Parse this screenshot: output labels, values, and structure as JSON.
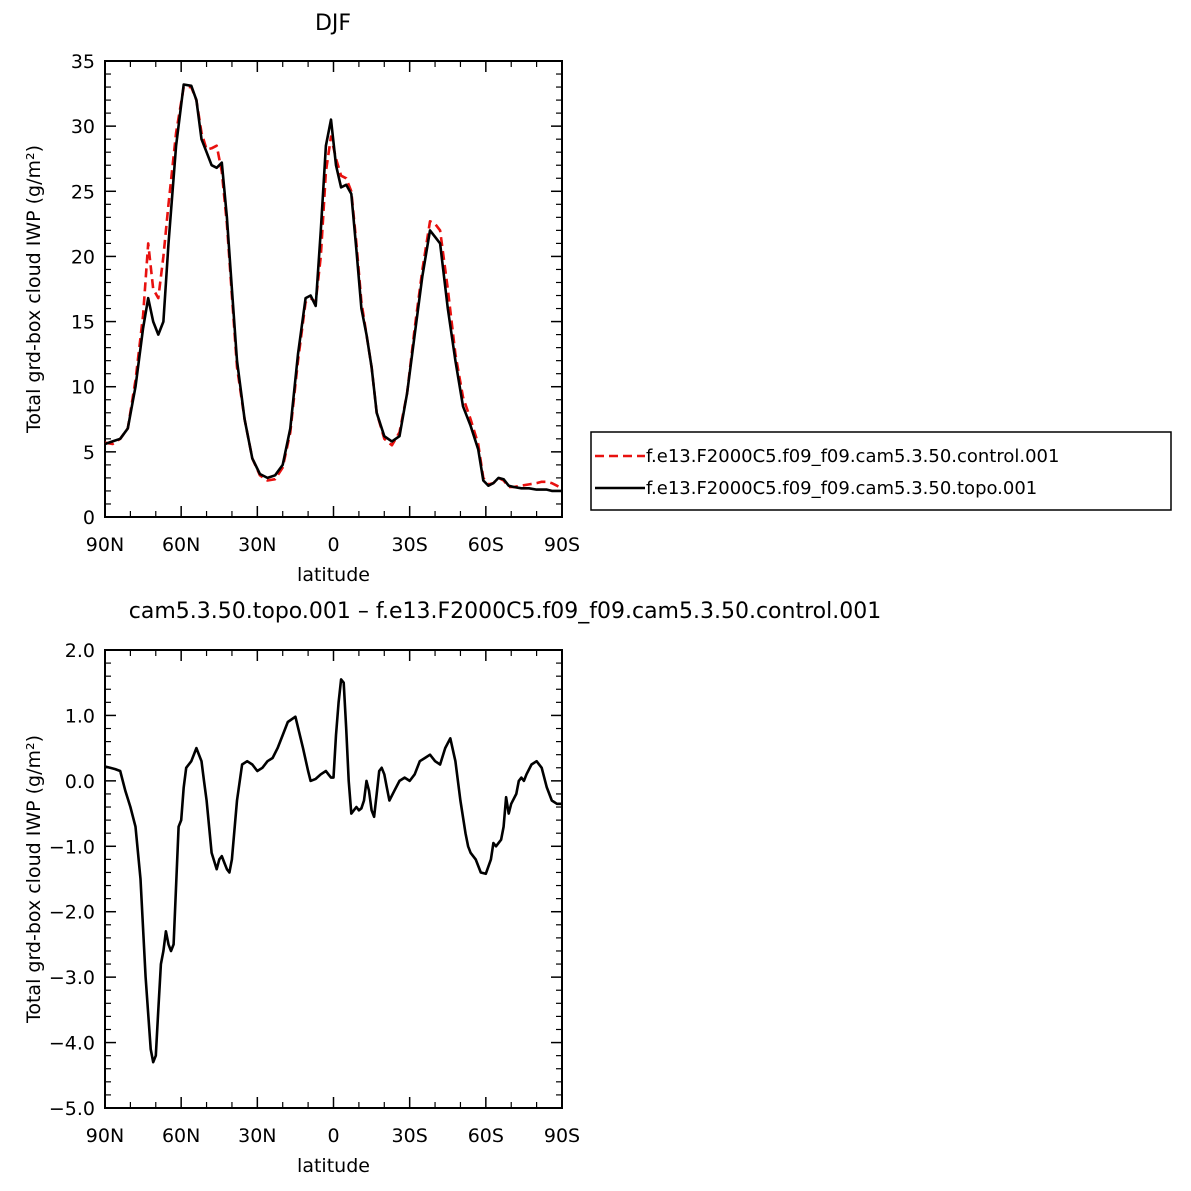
{
  "colors": {
    "control": "#e8110f",
    "topo": "#000000",
    "axis": "#000000",
    "background": "#ffffff"
  },
  "chart_data": [
    {
      "type": "line",
      "title": "DJF",
      "xlabel": "latitude",
      "ylabel": "Total grd-box cloud IWP (g/m²)",
      "xlim": [
        90,
        -90
      ],
      "ylim": [
        0,
        35
      ],
      "xticks": [
        {
          "value": 90,
          "label": "90N"
        },
        {
          "value": 60,
          "label": "60N"
        },
        {
          "value": 30,
          "label": "30N"
        },
        {
          "value": 0,
          "label": "0"
        },
        {
          "value": -30,
          "label": "30S"
        },
        {
          "value": -60,
          "label": "60S"
        },
        {
          "value": -90,
          "label": "90S"
        }
      ],
      "yticks": [
        {
          "value": 0,
          "label": "0"
        },
        {
          "value": 5,
          "label": "5"
        },
        {
          "value": 10,
          "label": "10"
        },
        {
          "value": 15,
          "label": "15"
        },
        {
          "value": 20,
          "label": "20"
        },
        {
          "value": 25,
          "label": "25"
        },
        {
          "value": 30,
          "label": "30"
        },
        {
          "value": 35,
          "label": "35"
        }
      ],
      "legend_position": "right",
      "series": [
        {
          "name": "f.e13.F2000C5.f09_f09.cam5.3.50.control.001",
          "style": "dashed",
          "color": "#e8110f",
          "x": [
            90,
            87,
            84,
            81,
            78,
            75,
            73,
            71,
            69,
            67,
            65,
            62,
            59,
            56,
            54,
            52,
            50,
            48,
            46,
            44,
            42,
            40,
            38,
            35,
            32,
            29,
            26,
            23,
            20,
            17,
            14,
            11,
            9,
            7,
            5,
            3,
            1,
            -1,
            -3,
            -5,
            -7,
            -9,
            -11,
            -13,
            -15,
            -17,
            -20,
            -23,
            -26,
            -29,
            -32,
            -35,
            -38,
            -40,
            -42,
            -45,
            -48,
            -51,
            -54,
            -57,
            -59,
            -61,
            -63,
            -65,
            -67,
            -69,
            -71,
            -74,
            -77,
            -80,
            -82,
            -84,
            -86,
            -88,
            -90
          ],
          "y": [
            5.7,
            5.6,
            6.0,
            6.8,
            10.5,
            15.5,
            21.0,
            17.5,
            16.8,
            20.0,
            24.0,
            29.5,
            33.0,
            33.0,
            32.0,
            29.5,
            28.2,
            28.3,
            28.5,
            26.5,
            22.5,
            17.0,
            11.5,
            7.5,
            4.5,
            3.2,
            2.8,
            2.9,
            3.8,
            6.5,
            12.0,
            16.5,
            16.8,
            16.5,
            20.0,
            26.5,
            29.2,
            27.5,
            26.2,
            26.0,
            25.0,
            21.0,
            16.5,
            14.0,
            11.5,
            8.0,
            6.0,
            5.5,
            6.5,
            9.5,
            14.5,
            19.0,
            22.7,
            22.5,
            22.0,
            17.5,
            12.5,
            9.2,
            7.5,
            5.6,
            3.0,
            2.5,
            2.6,
            3.0,
            2.8,
            2.3,
            2.3,
            2.4,
            2.5,
            2.6,
            2.7,
            2.7,
            2.6,
            2.4,
            2.2
          ]
        },
        {
          "name": "f.e13.F2000C5.f09_f09.cam5.3.50.topo.001",
          "style": "solid",
          "color": "#000000",
          "x": [
            90,
            87,
            84,
            81,
            78,
            75,
            73,
            71,
            69,
            67,
            65,
            62,
            59,
            56,
            54,
            52,
            50,
            48,
            46,
            44,
            42,
            40,
            38,
            35,
            32,
            29,
            26,
            23,
            20,
            17,
            14,
            11,
            9,
            7,
            5,
            3,
            1,
            -1,
            -3,
            -5,
            -7,
            -9,
            -11,
            -13,
            -15,
            -17,
            -20,
            -23,
            -26,
            -29,
            -32,
            -35,
            -38,
            -40,
            -42,
            -45,
            -48,
            -51,
            -54,
            -57,
            -59,
            -61,
            -63,
            -65,
            -67,
            -69,
            -71,
            -74,
            -77,
            -80,
            -82,
            -84,
            -86,
            -88,
            -90
          ],
          "y": [
            5.6,
            5.8,
            6.0,
            6.8,
            10.0,
            14.5,
            16.8,
            15.0,
            14.0,
            15.0,
            21.0,
            28.5,
            33.2,
            33.1,
            32.0,
            29.0,
            28.0,
            27.0,
            26.8,
            27.2,
            23.0,
            17.5,
            12.0,
            7.5,
            4.5,
            3.3,
            3.0,
            3.2,
            4.0,
            6.8,
            12.5,
            16.8,
            17.0,
            16.2,
            22.0,
            28.5,
            30.5,
            27.0,
            25.3,
            25.5,
            24.8,
            20.5,
            16.0,
            14.0,
            11.5,
            8.0,
            6.2,
            5.8,
            6.2,
            9.5,
            14.0,
            18.5,
            22.0,
            21.5,
            21.0,
            16.0,
            12.0,
            8.5,
            7.0,
            5.2,
            2.8,
            2.4,
            2.6,
            3.0,
            2.9,
            2.4,
            2.3,
            2.2,
            2.2,
            2.1,
            2.1,
            2.1,
            2.0,
            2.0,
            2.0
          ]
        }
      ]
    },
    {
      "type": "line",
      "title": "cam5.3.50.topo.001 – f.e13.F2000C5.f09_f09.cam5.3.50.control.001",
      "xlabel": "latitude",
      "ylabel": "Total grd-box cloud IWP (g/m²)",
      "xlim": [
        90,
        -90
      ],
      "ylim": [
        -5.0,
        2.0
      ],
      "xticks": [
        {
          "value": 90,
          "label": "90N"
        },
        {
          "value": 60,
          "label": "60N"
        },
        {
          "value": 30,
          "label": "30N"
        },
        {
          "value": 0,
          "label": "0"
        },
        {
          "value": -30,
          "label": "30S"
        },
        {
          "value": -60,
          "label": "60S"
        },
        {
          "value": -90,
          "label": "90S"
        }
      ],
      "yticks": [
        {
          "value": -5.0,
          "label": "−5.0"
        },
        {
          "value": -4.0,
          "label": "−4.0"
        },
        {
          "value": -3.0,
          "label": "−3.0"
        },
        {
          "value": -2.0,
          "label": "−2.0"
        },
        {
          "value": -1.0,
          "label": "−1.0"
        },
        {
          "value": 0.0,
          "label": "0.0"
        },
        {
          "value": 1.0,
          "label": "1.0"
        },
        {
          "value": 2.0,
          "label": "2.0"
        }
      ],
      "series": [
        {
          "style": "solid",
          "color": "#000000",
          "x": [
            90,
            88,
            86,
            84,
            82,
            80,
            78,
            76,
            74,
            72,
            71,
            70,
            69,
            68,
            67,
            66,
            65,
            64,
            63,
            62,
            61,
            60,
            59,
            58,
            56,
            54,
            52,
            51,
            50,
            48,
            46,
            45,
            44,
            43,
            42,
            41,
            40,
            38,
            36,
            34,
            32,
            30,
            28,
            26,
            24,
            22,
            20,
            18,
            15,
            12,
            10,
            9,
            7,
            5,
            3,
            2,
            1,
            0,
            -1,
            -2,
            -3,
            -4,
            -5,
            -6,
            -7,
            -8,
            -9,
            -10,
            -11,
            -12,
            -13,
            -14,
            -15,
            -16,
            -17,
            -18,
            -19,
            -20,
            -21,
            -22,
            -24,
            -26,
            -28,
            -30,
            -32,
            -34,
            -36,
            -38,
            -40,
            -42,
            -44,
            -46,
            -48,
            -50,
            -52,
            -53,
            -54,
            -56,
            -58,
            -60,
            -62,
            -63,
            -64,
            -66,
            -67,
            -68,
            -69,
            -70,
            -72,
            -73,
            -74,
            -75,
            -76,
            -78,
            -80,
            -82,
            -84,
            -86,
            -88,
            -90
          ],
          "y": [
            0.22,
            0.2,
            0.18,
            0.15,
            -0.15,
            -0.4,
            -0.7,
            -1.5,
            -3.0,
            -4.1,
            -4.3,
            -4.2,
            -3.5,
            -2.8,
            -2.6,
            -2.3,
            -2.5,
            -2.6,
            -2.5,
            -1.6,
            -0.7,
            -0.6,
            -0.1,
            0.2,
            0.3,
            0.5,
            0.3,
            0.0,
            -0.3,
            -1.1,
            -1.35,
            -1.2,
            -1.15,
            -1.25,
            -1.35,
            -1.4,
            -1.2,
            -0.3,
            0.25,
            0.3,
            0.25,
            0.15,
            0.2,
            0.3,
            0.35,
            0.5,
            0.7,
            0.9,
            0.98,
            0.5,
            0.15,
            0.0,
            0.03,
            0.1,
            0.15,
            0.1,
            0.05,
            0.05,
            0.7,
            1.2,
            1.55,
            1.5,
            0.8,
            0.0,
            -0.5,
            -0.45,
            -0.4,
            -0.45,
            -0.42,
            -0.3,
            0.0,
            -0.15,
            -0.45,
            -0.55,
            -0.2,
            0.15,
            0.2,
            0.1,
            -0.1,
            -0.3,
            -0.15,
            0.0,
            0.05,
            0.0,
            0.1,
            0.3,
            0.35,
            0.4,
            0.3,
            0.25,
            0.5,
            0.65,
            0.3,
            -0.3,
            -0.8,
            -1.0,
            -1.1,
            -1.2,
            -1.4,
            -1.42,
            -1.2,
            -0.95,
            -1.0,
            -0.9,
            -0.7,
            -0.25,
            -0.5,
            -0.35,
            -0.2,
            0.0,
            0.05,
            0.0,
            0.1,
            0.25,
            0.3,
            0.2,
            -0.1,
            -0.3,
            -0.35,
            -0.35
          ]
        }
      ]
    }
  ]
}
